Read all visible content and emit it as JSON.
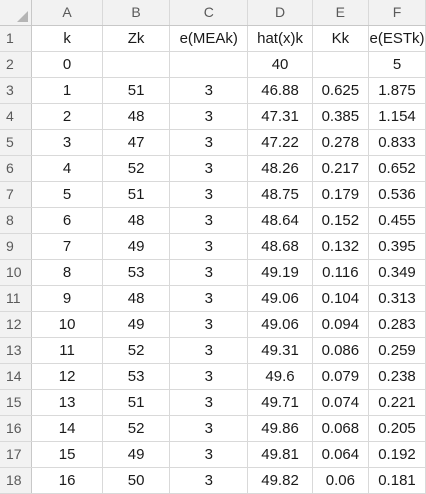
{
  "columns": [
    "A",
    "B",
    "C",
    "D",
    "E",
    "F"
  ],
  "rows": [
    {
      "n": "1",
      "cells": [
        "k",
        "Zk",
        "e(MEAk)",
        "hat(x)k",
        "Kk",
        "e(ESTk)"
      ]
    },
    {
      "n": "2",
      "cells": [
        "0",
        "",
        "",
        "40",
        "",
        "5"
      ]
    },
    {
      "n": "3",
      "cells": [
        "1",
        "51",
        "3",
        "46.88",
        "0.625",
        "1.875"
      ]
    },
    {
      "n": "4",
      "cells": [
        "2",
        "48",
        "3",
        "47.31",
        "0.385",
        "1.154"
      ]
    },
    {
      "n": "5",
      "cells": [
        "3",
        "47",
        "3",
        "47.22",
        "0.278",
        "0.833"
      ]
    },
    {
      "n": "6",
      "cells": [
        "4",
        "52",
        "3",
        "48.26",
        "0.217",
        "0.652"
      ]
    },
    {
      "n": "7",
      "cells": [
        "5",
        "51",
        "3",
        "48.75",
        "0.179",
        "0.536"
      ]
    },
    {
      "n": "8",
      "cells": [
        "6",
        "48",
        "3",
        "48.64",
        "0.152",
        "0.455"
      ]
    },
    {
      "n": "9",
      "cells": [
        "7",
        "49",
        "3",
        "48.68",
        "0.132",
        "0.395"
      ]
    },
    {
      "n": "10",
      "cells": [
        "8",
        "53",
        "3",
        "49.19",
        "0.116",
        "0.349"
      ]
    },
    {
      "n": "11",
      "cells": [
        "9",
        "48",
        "3",
        "49.06",
        "0.104",
        "0.313"
      ]
    },
    {
      "n": "12",
      "cells": [
        "10",
        "49",
        "3",
        "49.06",
        "0.094",
        "0.283"
      ]
    },
    {
      "n": "13",
      "cells": [
        "11",
        "52",
        "3",
        "49.31",
        "0.086",
        "0.259"
      ]
    },
    {
      "n": "14",
      "cells": [
        "12",
        "53",
        "3",
        "49.6",
        "0.079",
        "0.238"
      ]
    },
    {
      "n": "15",
      "cells": [
        "13",
        "51",
        "3",
        "49.71",
        "0.074",
        "0.221"
      ]
    },
    {
      "n": "16",
      "cells": [
        "14",
        "52",
        "3",
        "49.86",
        "0.068",
        "0.205"
      ]
    },
    {
      "n": "17",
      "cells": [
        "15",
        "49",
        "3",
        "49.81",
        "0.064",
        "0.192"
      ]
    },
    {
      "n": "18",
      "cells": [
        "16",
        "50",
        "3",
        "49.82",
        "0.06",
        "0.181"
      ]
    }
  ]
}
